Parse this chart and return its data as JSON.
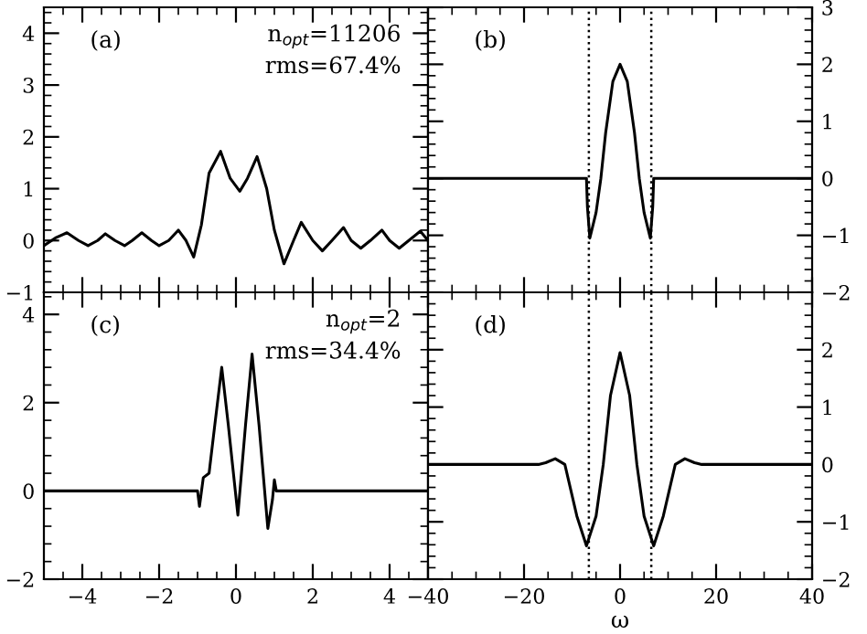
{
  "chart_data": [
    {
      "type": "line",
      "xlim": [
        -5,
        5
      ],
      "ylim": [
        -1,
        4.5
      ],
      "xticks": [
        -4,
        -2,
        0,
        2,
        4
      ],
      "yticks": [
        -1,
        0,
        1,
        2,
        3,
        4
      ],
      "tick_labels": "y",
      "grid": false,
      "legend": false,
      "annotations": [
        "(a)",
        "n$_{opt}$=11206",
        "rms=67.4%"
      ],
      "x": [
        -5,
        -4.7,
        -4.4,
        -4.1,
        -3.85,
        -3.6,
        -3.4,
        -3.15,
        -2.9,
        -2.7,
        -2.45,
        -2.2,
        -2.0,
        -1.75,
        -1.5,
        -1.3,
        -1.1,
        -0.9,
        -0.7,
        -0.4,
        -0.15,
        0.1,
        0.3,
        0.55,
        0.8,
        1.0,
        1.25,
        1.5,
        1.7,
        2.0,
        2.25,
        2.5,
        2.8,
        3.0,
        3.25,
        3.5,
        3.8,
        4.0,
        4.25,
        4.5,
        4.8,
        5
      ],
      "series": [
        {
          "color": "#000000",
          "values": [
            -0.1,
            0.05,
            0.15,
            0.0,
            -0.1,
            0.0,
            0.13,
            0.0,
            -0.1,
            0.0,
            0.15,
            0.0,
            -0.1,
            0.0,
            0.2,
            0.0,
            -0.32,
            0.3,
            1.3,
            1.72,
            1.2,
            0.95,
            1.2,
            1.62,
            1.0,
            0.2,
            -0.45,
            0.0,
            0.35,
            0.0,
            -0.2,
            0.0,
            0.25,
            0.0,
            -0.15,
            0.0,
            0.2,
            0.0,
            -0.15,
            0.0,
            0.18,
            0.0
          ]
        }
      ]
    },
    {
      "type": "line",
      "xlim": [
        -40,
        40
      ],
      "ylim": [
        -2,
        3
      ],
      "xticks": [
        -40,
        -20,
        0,
        20,
        40
      ],
      "yticks": [
        -2,
        -1,
        0,
        1,
        2,
        3
      ],
      "tick_labels": "y",
      "grid": false,
      "legend": false,
      "annotations": [
        "(b)"
      ],
      "ref_lines": [
        {
          "axis": "x",
          "value": -6.5,
          "color": "#000000",
          "line_style": "dotted"
        },
        {
          "axis": "x",
          "value": 6.5,
          "color": "#000000",
          "line_style": "dotted"
        }
      ],
      "x": [
        -40,
        -7,
        -6.8,
        -6.3,
        -5,
        -4,
        -3,
        -1.5,
        0,
        1.5,
        3,
        4,
        5,
        6.3,
        6.8,
        7,
        40
      ],
      "series": [
        {
          "color": "#000000",
          "values": [
            0,
            0,
            -0.5,
            -1.05,
            -0.6,
            0.0,
            0.8,
            1.7,
            2.0,
            1.7,
            0.8,
            0.0,
            -0.6,
            -1.05,
            -0.5,
            0,
            0
          ]
        }
      ]
    },
    {
      "type": "line",
      "xlim": [
        -5,
        5
      ],
      "ylim": [
        -2,
        4.5
      ],
      "xticks": [
        -4,
        -2,
        0,
        2,
        4
      ],
      "yticks": [
        -2,
        0,
        2,
        4
      ],
      "grid": false,
      "legend": false,
      "annotations": [
        "(c)",
        "n$_{opt}$=2",
        "rms=34.4%"
      ],
      "x": [
        -5,
        -1.0,
        -0.95,
        -0.85,
        -0.7,
        -0.55,
        -0.37,
        -0.2,
        0.05,
        0.25,
        0.42,
        0.6,
        0.83,
        0.95,
        1.0,
        1.05,
        5
      ],
      "series": [
        {
          "color": "#000000",
          "values": [
            0,
            0,
            -0.35,
            0.3,
            0.4,
            1.5,
            2.8,
            1.5,
            -0.55,
            1.5,
            3.1,
            1.5,
            -0.85,
            -0.2,
            0.25,
            0,
            0
          ]
        }
      ]
    },
    {
      "type": "line",
      "xlim": [
        -40,
        40
      ],
      "ylim": [
        -2,
        3
      ],
      "xticks": [
        -40,
        -20,
        0,
        20,
        40
      ],
      "yticks": [
        -2,
        -1,
        0,
        1,
        2
      ],
      "xlabel": "ω",
      "grid": false,
      "legend": false,
      "annotations": [
        "(d)"
      ],
      "ref_lines": [
        {
          "axis": "x",
          "value": -6.5,
          "color": "#000000",
          "line_style": "dotted"
        },
        {
          "axis": "x",
          "value": 6.5,
          "color": "#000000",
          "line_style": "dotted"
        }
      ],
      "x": [
        -40,
        -17,
        -15.5,
        -13.5,
        -11.5,
        -9,
        -7,
        -5,
        -3.5,
        -2,
        0,
        2,
        3.5,
        5,
        7,
        9,
        11.5,
        13.5,
        15.5,
        17,
        40
      ],
      "series": [
        {
          "color": "#000000",
          "values": [
            0,
            0,
            0.03,
            0.1,
            0.0,
            -0.9,
            -1.42,
            -0.9,
            0.0,
            1.2,
            1.95,
            1.2,
            0.0,
            -0.9,
            -1.42,
            -0.9,
            0.0,
            0.1,
            0.03,
            0,
            0
          ]
        }
      ]
    }
  ]
}
